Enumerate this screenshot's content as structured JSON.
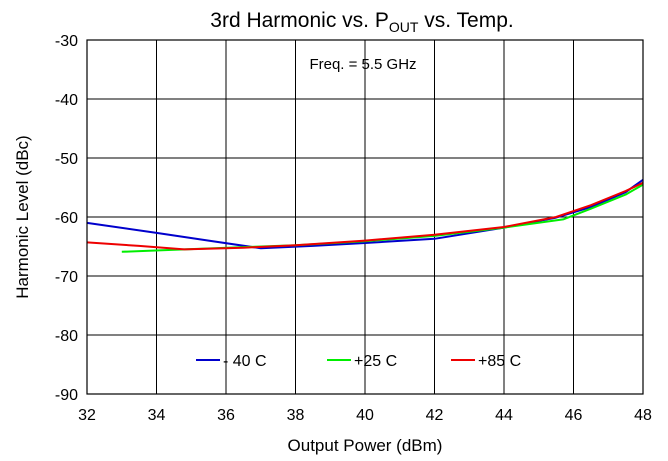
{
  "chart_data": {
    "type": "line",
    "title": {
      "main": "3rd Harmonic vs. P",
      "sub": "OUT",
      "tail": " vs. Temp."
    },
    "xlabel": "Output Power (dBm)",
    "ylabel": "Harmonic Level (dBc)",
    "xlim": [
      32,
      48
    ],
    "ylim": [
      -90,
      -30
    ],
    "xticks": [
      32,
      34,
      36,
      38,
      40,
      42,
      44,
      46,
      48
    ],
    "yticks": [
      -30,
      -40,
      -50,
      -60,
      -70,
      -80,
      -90
    ],
    "grid": true,
    "annotation": "Freq. = 5.5 GHz",
    "legend_position": "bottom-center",
    "series": [
      {
        "name": "- 40 C",
        "color": "#0000CC",
        "x": [
          32,
          34,
          35.5,
          37,
          38.5,
          40,
          42,
          44,
          45.5,
          46.5,
          47.5,
          48
        ],
        "y": [
          -61,
          -62.7,
          -64,
          -65.3,
          -64.9,
          -64.4,
          -63.7,
          -61.8,
          -60.1,
          -58.3,
          -55.8,
          -53.7
        ]
      },
      {
        "name": "+25 C",
        "color": "#00EE00",
        "x": [
          33,
          34.8,
          36.5,
          38,
          40,
          42,
          44,
          45.7,
          46.5,
          47.5,
          48
        ],
        "y": [
          -65.9,
          -65.5,
          -65.1,
          -64.8,
          -64.1,
          -63.2,
          -61.8,
          -60.4,
          -58.6,
          -56.2,
          -54.5
        ]
      },
      {
        "name": "+85 C",
        "color": "#EE0000",
        "x": [
          32,
          33.5,
          34.8,
          36.5,
          38,
          40,
          42,
          44,
          45.5,
          46.5,
          47.5,
          48
        ],
        "y": [
          -64.3,
          -64.9,
          -65.5,
          -65.2,
          -64.8,
          -64,
          -63,
          -61.7,
          -60,
          -58,
          -55.6,
          -54.2
        ]
      }
    ]
  }
}
